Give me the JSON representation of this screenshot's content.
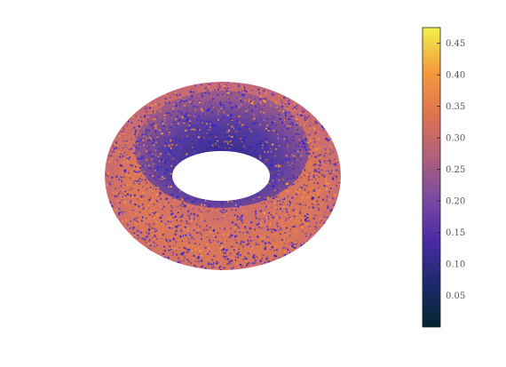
{
  "chart_data": {
    "type": "surface",
    "shape": "torus",
    "title": "",
    "colormap": {
      "name": "thermal",
      "stops": [
        "#04232f",
        "#1b2a6b",
        "#4a2aa6",
        "#7b4aa0",
        "#b0607a",
        "#e0744f",
        "#f39c3c",
        "#f2f24c"
      ]
    },
    "value_range": [
      0.0,
      0.475
    ],
    "colorbar": {
      "placement": "right",
      "tick_values": [
        0.05,
        0.1,
        0.15,
        0.2,
        0.25,
        0.3,
        0.35,
        0.4,
        0.45
      ],
      "tick_labels": [
        "0.05",
        "0.10",
        "0.15",
        "0.20",
        "0.25",
        "0.30",
        "0.35",
        "0.40",
        "0.45"
      ]
    },
    "surface_colors": {
      "dominant": "#e0744f",
      "speckle": "#2a22d6",
      "inner_shadow": "#4a3aa0"
    },
    "grid": false,
    "axes_visible": false
  }
}
